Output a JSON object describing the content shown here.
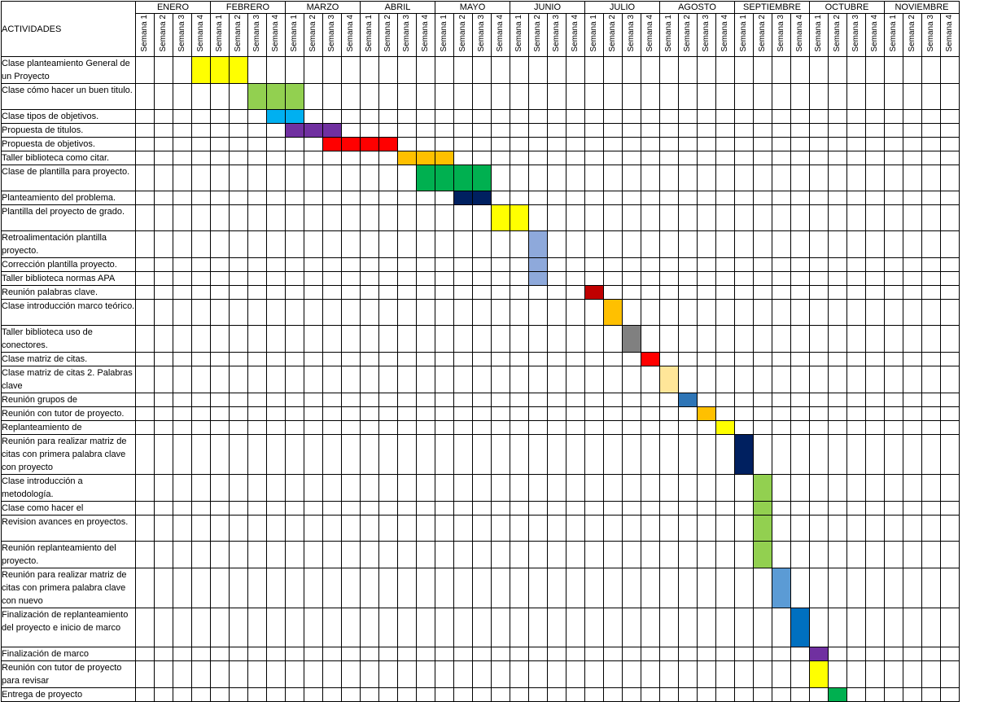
{
  "header": {
    "activities_label": "ACTIVIDADES",
    "months": [
      {
        "label": "ENERO",
        "span": 4
      },
      {
        "label": "FEBRERO",
        "span": 4
      },
      {
        "label": "MARZO",
        "span": 4
      },
      {
        "label": "ABRIL",
        "span": 4
      },
      {
        "label": "MAYO",
        "span": 4
      },
      {
        "label": "JUNIO",
        "span": 4
      },
      {
        "label": "JULIO",
        "span": 4
      },
      {
        "label": "AGOSTO",
        "span": 4
      },
      {
        "label": "SEPTIEMBRE",
        "span": 4
      },
      {
        "label": "OCTUBRE",
        "span": 4
      },
      {
        "label": "NOVIEMBRE",
        "span": 4
      }
    ],
    "weeks": [
      "Semana 1",
      "Semana 2",
      "Semana 3",
      "Semana 4",
      "Semana 1",
      "Semana 2",
      "Semana 3",
      "Semana 4",
      "Semana 1",
      "Semana 2",
      "Semana 3",
      "Semana 4",
      "Semana 1",
      "Semana 2",
      "Semana 3",
      "Semana 4",
      "Semana 1",
      "Semana 2",
      "Semana 3",
      "Semana 4",
      "Semana 1",
      "Semana 2",
      "Semana 3",
      "Semana 4",
      "Semana 1",
      "Semana 2",
      "Semana 3",
      "Semana 4",
      "Semana 1",
      "Semana 2",
      "Semana 3",
      "Semana 4",
      "Semana 1",
      "Semana 2",
      "Semana 3",
      "Semana 4",
      "Semana 1",
      "Semana 2",
      "Semana 3",
      "Semana 4",
      "Semana 1",
      "Semana 2",
      "Semana 3",
      "Semana 4"
    ]
  },
  "activities": [
    {
      "label": "Clase planteamiento General de un Proyecto",
      "lines": 2,
      "start": 3,
      "length": 3,
      "color": "#FFFF00"
    },
    {
      "label": "Clase cómo hacer un buen titulo.",
      "lines": 2,
      "start": 6,
      "length": 3,
      "color": "#92D050"
    },
    {
      "label": "Clase tipos de objetivos.",
      "lines": 1,
      "start": 7,
      "length": 2,
      "color": "#00B0F0"
    },
    {
      "label": "Propuesta de titulos.",
      "lines": 1,
      "start": 8,
      "length": 3,
      "color": "#7030A0"
    },
    {
      "label": "Propuesta de objetivos.",
      "lines": 1,
      "start": 10,
      "length": 4,
      "color": "#FF0000"
    },
    {
      "label": "Taller biblioteca como citar.",
      "lines": 1,
      "start": 14,
      "length": 3,
      "color": "#FFC000"
    },
    {
      "label": "Clase de plantilla para proyecto.",
      "lines": 2,
      "start": 15,
      "length": 4,
      "color": "#00B050"
    },
    {
      "label": "Planteamiento del problema.",
      "lines": 1,
      "start": 17,
      "length": 2,
      "color": "#002060"
    },
    {
      "label": "Plantilla del proyecto de grado.",
      "lines": 2,
      "start": 19,
      "length": 2,
      "color": "#FFFF00"
    },
    {
      "label": "Retroalimentación plantilla proyecto.",
      "lines": 2,
      "start": 21,
      "length": 1,
      "color": "#8EA9DB"
    },
    {
      "label": "Corrección plantilla proyecto.",
      "lines": 1,
      "start": 21,
      "length": 1,
      "color": "#8EA9DB"
    },
    {
      "label": "Taller biblioteca normas APA",
      "lines": 1,
      "start": 21,
      "length": 1,
      "color": "#8EA9DB"
    },
    {
      "label": "Reunión palabras clave.",
      "lines": 1,
      "start": 24,
      "length": 1,
      "color": "#C00000"
    },
    {
      "label": "Clase introducción marco teórico.",
      "lines": 2,
      "start": 25,
      "length": 1,
      "color": "#FFC000"
    },
    {
      "label": "Taller biblioteca uso de conectores.",
      "lines": 2,
      "start": 26,
      "length": 1,
      "color": "#808080"
    },
    {
      "label": "Clase matriz de citas.",
      "lines": 1,
      "start": 27,
      "length": 1,
      "color": "#FF0000"
    },
    {
      "label": "Clase matriz de citas 2. Palabras clave",
      "lines": 2,
      "start": 28,
      "length": 1,
      "color": "#FFE699"
    },
    {
      "label": "Reunión grupos de",
      "lines": 1,
      "start": 29,
      "length": 1,
      "color": "#2E75B6"
    },
    {
      "label": "Reunión con tutor de proyecto.",
      "lines": 1,
      "start": 30,
      "length": 1,
      "color": "#FFC000"
    },
    {
      "label": "Replanteamiento de",
      "lines": 1,
      "start": 31,
      "length": 1,
      "color": "#FFFF00"
    },
    {
      "label": "Reunión para realizar matriz de citas con primera palabra clave con proyecto",
      "lines": 3,
      "start": 32,
      "length": 1,
      "color": "#002060"
    },
    {
      "label": "Clase introducción a metodología.",
      "lines": 2,
      "start": 33,
      "length": 1,
      "color": "#92D050"
    },
    {
      "label": "Clase como hacer el",
      "lines": 1,
      "start": 33,
      "length": 1,
      "color": "#92D050"
    },
    {
      "label": "Revision avances en proyectos.",
      "lines": 2,
      "start": 33,
      "length": 1,
      "color": "#92D050"
    },
    {
      "label": "Reunión replanteamiento del proyecto.",
      "lines": 2,
      "start": 33,
      "length": 1,
      "color": "#92D050"
    },
    {
      "label": "Reunión para realizar matriz de citas con primera palabra clave con nuevo",
      "lines": 3,
      "start": 34,
      "length": 1,
      "color": "#5B9BD5"
    },
    {
      "label": "Finalización de replanteamiento del proyecto e inicio de marco",
      "lines": 3,
      "start": 35,
      "length": 1,
      "color": "#0070C0"
    },
    {
      "label": "Finalización de marco",
      "lines": 1,
      "start": 36,
      "length": 1,
      "color": "#7030A0"
    },
    {
      "label": "Reunión con tutor de proyecto para revisar",
      "lines": 2,
      "start": 36,
      "length": 1,
      "color": "#FFFF00"
    },
    {
      "label": "Entrega de proyecto",
      "lines": 1,
      "start": 37,
      "length": 1,
      "color": "#00B050"
    }
  ]
}
